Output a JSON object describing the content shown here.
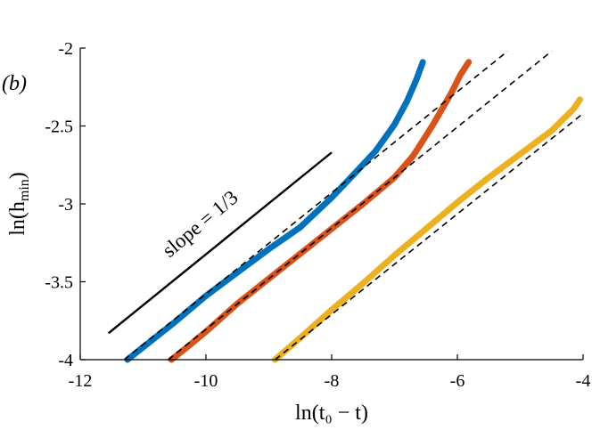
{
  "chart_data": {
    "type": "line",
    "panel_label": "(b)",
    "xlabel": "ln(t₀ − t)",
    "ylabel": "ln(h_min)",
    "ylabel_main": "ln(h",
    "ylabel_sub": "min",
    "ylabel_close": ")",
    "xlim": [
      -12,
      -4
    ],
    "ylim": [
      -4,
      -2
    ],
    "xticks": [
      -12,
      -10,
      -8,
      -6,
      -4
    ],
    "xtick_labels": [
      "-12",
      "-10",
      "-8",
      "-6",
      "-4"
    ],
    "yticks": [
      -4,
      -3.5,
      -3,
      -2.5,
      -2
    ],
    "ytick_labels": [
      "-4",
      "-3.5",
      "-3",
      "-2.5",
      "-2"
    ],
    "series": [
      {
        "name": "blue",
        "color": "#0072BD",
        "points": [
          [
            -11.25,
            -4.0
          ],
          [
            -11.0,
            -3.92
          ],
          [
            -10.5,
            -3.76
          ],
          [
            -10.0,
            -3.59
          ],
          [
            -9.5,
            -3.44
          ],
          [
            -9.0,
            -3.29
          ],
          [
            -8.5,
            -3.15
          ],
          [
            -8.0,
            -2.96
          ],
          [
            -7.6,
            -2.79
          ],
          [
            -7.3,
            -2.66
          ],
          [
            -7.0,
            -2.49
          ],
          [
            -6.8,
            -2.34
          ],
          [
            -6.65,
            -2.2
          ],
          [
            -6.55,
            -2.09
          ]
        ]
      },
      {
        "name": "orange",
        "color": "#D95319",
        "points": [
          [
            -10.55,
            -4.0
          ],
          [
            -10.3,
            -3.92
          ],
          [
            -10.0,
            -3.82
          ],
          [
            -9.5,
            -3.64
          ],
          [
            -9.0,
            -3.48
          ],
          [
            -8.5,
            -3.32
          ],
          [
            -8.0,
            -3.16
          ],
          [
            -7.5,
            -3.0
          ],
          [
            -7.0,
            -2.83
          ],
          [
            -6.7,
            -2.69
          ],
          [
            -6.4,
            -2.5
          ],
          [
            -6.1,
            -2.29
          ],
          [
            -5.95,
            -2.17
          ],
          [
            -5.82,
            -2.09
          ]
        ]
      },
      {
        "name": "yellow",
        "color": "#EDB120",
        "points": [
          [
            -8.9,
            -4.0
          ],
          [
            -8.5,
            -3.86
          ],
          [
            -8.0,
            -3.68
          ],
          [
            -7.5,
            -3.51
          ],
          [
            -7.0,
            -3.33
          ],
          [
            -6.5,
            -3.16
          ],
          [
            -6.0,
            -2.99
          ],
          [
            -5.5,
            -2.83
          ],
          [
            -5.0,
            -2.68
          ],
          [
            -4.5,
            -2.53
          ],
          [
            -4.3,
            -2.45
          ],
          [
            -4.15,
            -2.39
          ],
          [
            -4.05,
            -2.33
          ]
        ]
      }
    ],
    "fits": [
      {
        "name": "fit-blue",
        "x": [
          -11.3,
          -5.2
        ],
        "y": [
          -4.0,
          -2.02
        ]
      },
      {
        "name": "fit-orange",
        "x": [
          -10.6,
          -4.5
        ],
        "y": [
          -4.0,
          -2.02
        ]
      },
      {
        "name": "fit-yellow",
        "x": [
          -8.9,
          -4.0
        ],
        "y": [
          -4.0,
          -2.42
        ]
      }
    ],
    "slope_line": {
      "x": [
        -11.55,
        -8.0
      ],
      "y": [
        -3.83,
        -2.67
      ]
    },
    "annotation": "slope = 1/3"
  }
}
